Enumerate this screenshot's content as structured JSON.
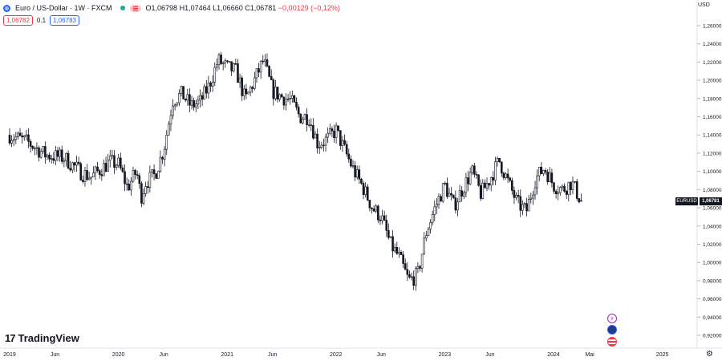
{
  "legend": {
    "symbol_title": "Euro / US-Dollar · 1W · FXCM",
    "open_label": "O",
    "open": "1,06798",
    "high_label": "H",
    "high": "1,07464",
    "low_label": "L",
    "low": "1,06660",
    "close_label": "C",
    "close": "1,06781",
    "change": "−0,00129 (−0,12%)"
  },
  "trade": {
    "sell_price": "1,06782",
    "spread": "0.1",
    "buy_price": "1,06783"
  },
  "price_axis": {
    "currency": "USD",
    "ticks": [
      "1,26000",
      "1,24000",
      "1,22000",
      "1,20000",
      "1,18000",
      "1,16000",
      "1,14000",
      "1,12000",
      "1,10000",
      "1,08000",
      "1,06000",
      "1,04000",
      "1,02000",
      "1,00000",
      "0,98000",
      "0,96000",
      "0,94000",
      "0,92000"
    ],
    "symbol_badge": "EURUSD",
    "last_price_badge": "1,06781",
    "last_price_value": 1.06781
  },
  "time_axis": {
    "labels": [
      "2019",
      "Jun",
      "2020",
      "Jun",
      "2021",
      "Jun",
      "2022",
      "Jun",
      "2023",
      "Jun",
      "2024",
      "Mai",
      "2025"
    ]
  },
  "watermark": {
    "logo": "17",
    "brand": "TradingView"
  },
  "icons": {
    "globe": "globe-icon",
    "market_status": "market-open-dot-icon",
    "flag": "eu-flag-icon",
    "settings": "gear-icon",
    "event_1": "lightning-event-icon",
    "event_2": "eu-event-icon",
    "event_3": "us-event-icon"
  },
  "colors": {
    "candle": "#131722",
    "sell": "#f23645",
    "buy": "#2962ff",
    "grid": "#e0e3eb"
  },
  "chart_data": {
    "type": "candlestick",
    "title": "Euro / US-Dollar · 1W · FXCM",
    "xlabel": "",
    "ylabel": "",
    "ylim": [
      0.91,
      1.27
    ],
    "x_range": [
      "2019-01",
      "2025-04"
    ],
    "grid": false,
    "series": [
      {
        "name": "EURUSD",
        "close_path": [
          {
            "x": "2019-01",
            "y": 1.14
          },
          {
            "x": "2019-03",
            "y": 1.132
          },
          {
            "x": "2019-05",
            "y": 1.118
          },
          {
            "x": "2019-07",
            "y": 1.115
          },
          {
            "x": "2019-09",
            "y": 1.098
          },
          {
            "x": "2019-10",
            "y": 1.094
          },
          {
            "x": "2019-11",
            "y": 1.102
          },
          {
            "x": "2019-12",
            "y": 1.11
          },
          {
            "x": "2020-01",
            "y": 1.108
          },
          {
            "x": "2020-02",
            "y": 1.082
          },
          {
            "x": "2020-03",
            "y": 1.1
          },
          {
            "x": "2020-03",
            "y": 1.072
          },
          {
            "x": "2020-04",
            "y": 1.088
          },
          {
            "x": "2020-05",
            "y": 1.096
          },
          {
            "x": "2020-06",
            "y": 1.124
          },
          {
            "x": "2020-07",
            "y": 1.178
          },
          {
            "x": "2020-08",
            "y": 1.185
          },
          {
            "x": "2020-09",
            "y": 1.172
          },
          {
            "x": "2020-10",
            "y": 1.176
          },
          {
            "x": "2020-11",
            "y": 1.194
          },
          {
            "x": "2020-12",
            "y": 1.222
          },
          {
            "x": "2021-01",
            "y": 1.214
          },
          {
            "x": "2021-02",
            "y": 1.21
          },
          {
            "x": "2021-03",
            "y": 1.178
          },
          {
            "x": "2021-04",
            "y": 1.2
          },
          {
            "x": "2021-05",
            "y": 1.222
          },
          {
            "x": "2021-06",
            "y": 1.188
          },
          {
            "x": "2021-07",
            "y": 1.182
          },
          {
            "x": "2021-08",
            "y": 1.178
          },
          {
            "x": "2021-09",
            "y": 1.16
          },
          {
            "x": "2021-10",
            "y": 1.16
          },
          {
            "x": "2021-11",
            "y": 1.13
          },
          {
            "x": "2021-12",
            "y": 1.135
          },
          {
            "x": "2022-01",
            "y": 1.145
          },
          {
            "x": "2022-02",
            "y": 1.122
          },
          {
            "x": "2022-03",
            "y": 1.1
          },
          {
            "x": "2022-04",
            "y": 1.082
          },
          {
            "x": "2022-05",
            "y": 1.06
          },
          {
            "x": "2022-06",
            "y": 1.05
          },
          {
            "x": "2022-07",
            "y": 1.02
          },
          {
            "x": "2022-08",
            "y": 1.005
          },
          {
            "x": "2022-09",
            "y": 0.98
          },
          {
            "x": "2022-10",
            "y": 0.986
          },
          {
            "x": "2022-11",
            "y": 1.035
          },
          {
            "x": "2022-12",
            "y": 1.062
          },
          {
            "x": "2023-01",
            "y": 1.085
          },
          {
            "x": "2023-02",
            "y": 1.062
          },
          {
            "x": "2023-03",
            "y": 1.082
          },
          {
            "x": "2023-04",
            "y": 1.1
          },
          {
            "x": "2023-05",
            "y": 1.075
          },
          {
            "x": "2023-06",
            "y": 1.092
          },
          {
            "x": "2023-07",
            "y": 1.112
          },
          {
            "x": "2023-08",
            "y": 1.088
          },
          {
            "x": "2023-09",
            "y": 1.065
          },
          {
            "x": "2023-10",
            "y": 1.056
          },
          {
            "x": "2023-11",
            "y": 1.092
          },
          {
            "x": "2023-12",
            "y": 1.104
          },
          {
            "x": "2024-01",
            "y": 1.085
          },
          {
            "x": "2024-02",
            "y": 1.08
          },
          {
            "x": "2024-03",
            "y": 1.088
          },
          {
            "x": "2024-04",
            "y": 1.068
          }
        ],
        "last": {
          "open": 1.06798,
          "high": 1.07464,
          "low": 1.0666,
          "close": 1.06781
        }
      }
    ]
  }
}
